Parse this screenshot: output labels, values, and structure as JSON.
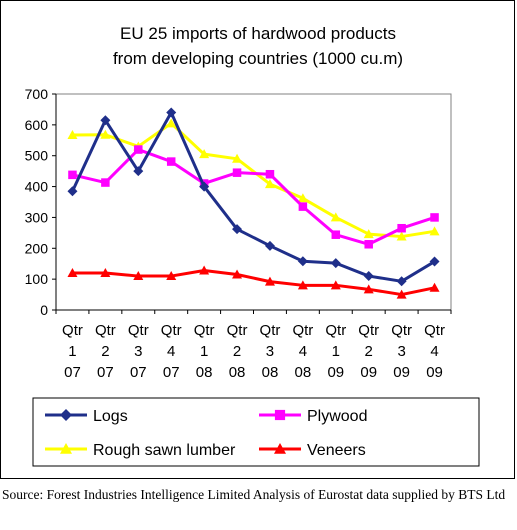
{
  "chart_data": {
    "type": "line",
    "title_lines": [
      "EU 25  imports of hardwood products",
      "from developing countries  (1000 cu.m)"
    ],
    "xlabel": "",
    "ylabel": "",
    "ylim": [
      0,
      700
    ],
    "yticks": [
      0,
      100,
      200,
      300,
      400,
      500,
      600,
      700
    ],
    "grid": false,
    "legend_position": "bottom",
    "categories": [
      [
        "Qtr",
        "1",
        "07"
      ],
      [
        "Qtr",
        "2",
        "07"
      ],
      [
        "Qtr",
        "3",
        "07"
      ],
      [
        "Qtr",
        "4",
        "07"
      ],
      [
        "Qtr",
        "1",
        "08"
      ],
      [
        "Qtr",
        "2",
        "08"
      ],
      [
        "Qtr",
        "3",
        "08"
      ],
      [
        "Qtr",
        "4",
        "08"
      ],
      [
        "Qtr",
        "1",
        "09"
      ],
      [
        "Qtr",
        "2",
        "09"
      ],
      [
        "Qtr",
        "3",
        "09"
      ],
      [
        "Qtr",
        "4",
        "09"
      ]
    ],
    "series": [
      {
        "name": "Logs",
        "color": "#1f2f8a",
        "marker": "diamond",
        "values": [
          385,
          615,
          450,
          640,
          400,
          262,
          208,
          158,
          152,
          110,
          93,
          157
        ]
      },
      {
        "name": "Plywood",
        "color": "#ff00ff",
        "marker": "square",
        "values": [
          438,
          413,
          520,
          481,
          410,
          445,
          440,
          335,
          244,
          213,
          265,
          300
        ]
      },
      {
        "name": "Rough sawn lumber",
        "color": "#ffff00",
        "marker": "triangle",
        "values": [
          567,
          568,
          530,
          605,
          505,
          490,
          408,
          362,
          300,
          246,
          238,
          255
        ]
      },
      {
        "name": "Veneers",
        "color": "#ff0000",
        "marker": "triangle",
        "values": [
          120,
          120,
          110,
          110,
          128,
          115,
          92,
          80,
          80,
          67,
          50,
          72
        ]
      }
    ]
  },
  "source_note": "Source: Forest Industries Intelligence Limited Analysis of Eurostat data supplied by BTS Ltd"
}
